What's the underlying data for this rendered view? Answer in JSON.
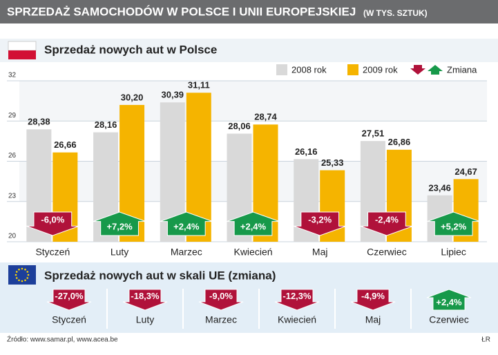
{
  "header": {
    "title": "SPRZEDAŻ SAMOCHODÓW W POLSCE I UNII EUROPEJSKIEJ",
    "subtitle": "(W TYS. SZTUK)"
  },
  "chart_data": [
    {
      "type": "bar",
      "title": "Sprzedaż nowych aut w Polsce",
      "categories": [
        "Styczeń",
        "Luty",
        "Marzec",
        "Kwiecień",
        "Maj",
        "Czerwiec",
        "Lipiec"
      ],
      "series": [
        {
          "name": "2008 rok",
          "color": "#d9d9d9",
          "values": [
            28.38,
            28.16,
            30.39,
            28.06,
            26.16,
            27.51,
            23.46
          ],
          "value_labels": [
            "28,38",
            "28,16",
            "30,39",
            "28,06",
            "26,16",
            "27,51",
            "23,46"
          ]
        },
        {
          "name": "2009 rok",
          "color": "#f5b400",
          "values": [
            26.66,
            30.2,
            31.11,
            28.74,
            25.33,
            26.86,
            24.67
          ],
          "value_labels": [
            "26,66",
            "30,20",
            "31,11",
            "28,74",
            "25,33",
            "26,86",
            "24,67"
          ]
        }
      ],
      "changes": {
        "name": "Zmiana",
        "values": [
          -6.0,
          7.2,
          2.4,
          2.4,
          -3.2,
          -2.4,
          5.2
        ],
        "value_labels": [
          "-6,0%",
          "+7,2%",
          "+2,4%",
          "+2,4%",
          "-3,2%",
          "-2,4%",
          "+5,2%"
        ]
      },
      "down_color": "#b0123a",
      "up_color": "#17994a",
      "ylim": [
        20,
        32
      ],
      "yticks": [
        20,
        23,
        26,
        29,
        32
      ],
      "grid": true
    },
    {
      "type": "arrows",
      "title": "Sprzedaż nowych aut w skali UE (zmiana)",
      "categories": [
        "Styczeń",
        "Luty",
        "Marzec",
        "Kwiecień",
        "Maj",
        "Czerwiec"
      ],
      "values": [
        -27.0,
        -18.3,
        -9.0,
        -12.3,
        -4.9,
        2.4
      ],
      "value_labels": [
        "-27,0%",
        "-18,3%",
        "-9,0%",
        "-12,3%",
        "-4,9%",
        "+2,4%"
      ],
      "down_color": "#b0123a",
      "up_color": "#17994a"
    }
  ],
  "footer": {
    "source": "Źródło: www.samar.pl, www.acea.be",
    "credit": "ŁR"
  }
}
